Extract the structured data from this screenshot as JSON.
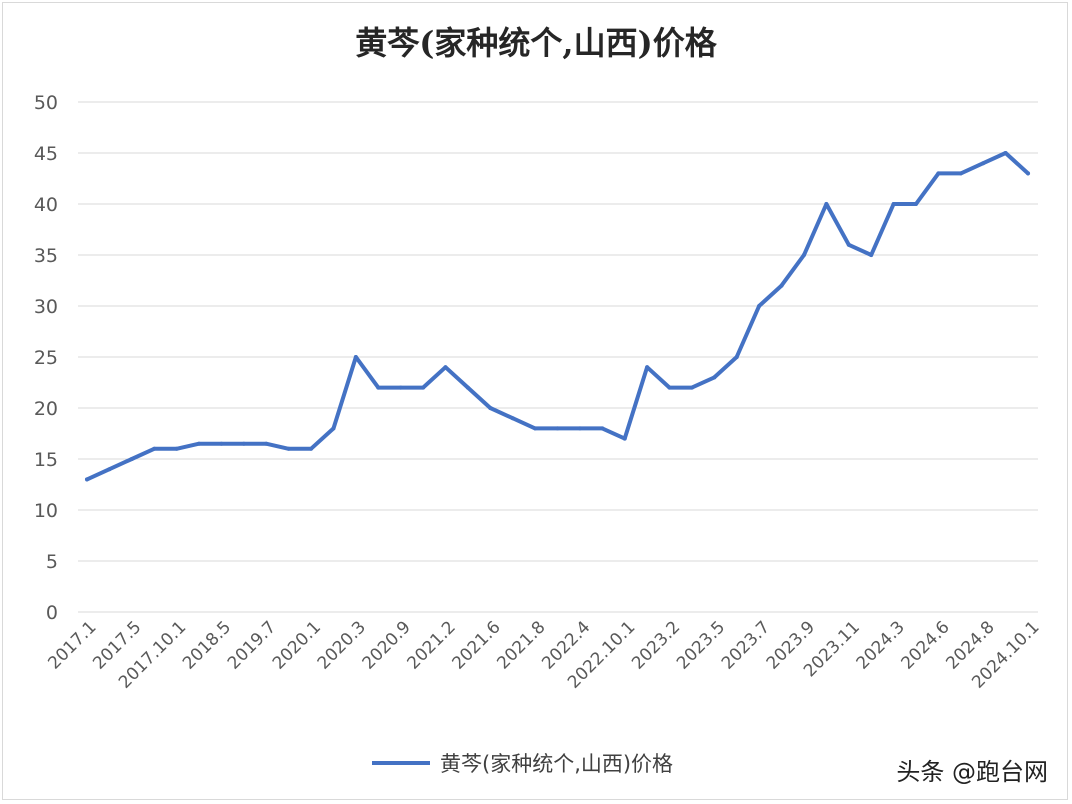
{
  "chart_data": {
    "type": "line",
    "title": "黄芩(家种统个,山西)价格",
    "xlabel": "",
    "ylabel": "",
    "ylim": [
      0,
      50
    ],
    "y_ticks": [
      0,
      5,
      10,
      15,
      20,
      25,
      30,
      35,
      40,
      45,
      50
    ],
    "x_tick_labels": [
      "2017.1",
      "2017.5",
      "2017.10.1",
      "2018.5",
      "2019.7",
      "2020.1",
      "2020.3",
      "2020.9",
      "2021.2",
      "2021.6",
      "2021.8",
      "2022.4",
      "2022.10.1",
      "2023.2",
      "2023.5",
      "2023.7",
      "2023.9",
      "2023.11",
      "2024.3",
      "2024.6",
      "2024.8",
      "2024.10.1"
    ],
    "grid": true,
    "legend_position": "bottom",
    "series": [
      {
        "name": "黄芩(家种统个,山西)价格",
        "color": "#4472c4",
        "values": [
          13,
          14,
          15,
          16,
          16,
          16.5,
          16.5,
          16.5,
          16.5,
          16,
          16,
          18,
          25,
          22,
          22,
          22,
          24,
          22,
          20,
          19,
          18,
          18,
          18,
          18,
          17,
          24,
          22,
          22,
          23,
          25,
          30,
          32,
          35,
          40,
          36,
          35,
          40,
          40,
          43,
          43,
          44,
          45,
          43
        ]
      }
    ]
  },
  "legend": {
    "label": "黄芩(家种统个,山西)价格"
  },
  "watermark": "头条 @跑台网"
}
